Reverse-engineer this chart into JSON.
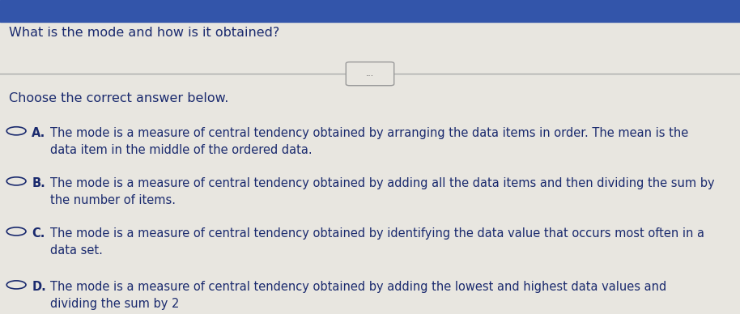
{
  "title": "What is the mode and how is it obtained?",
  "subtitle": "Choose the correct answer below.",
  "separator_text": "...",
  "options": [
    {
      "label": "A.",
      "text": "The mode is a measure of central tendency obtained by arranging the data items in order. The mean is the\ndata item in the middle of the ordered data."
    },
    {
      "label": "B.",
      "text": "The mode is a measure of central tendency obtained by adding all the data items and then dividing the sum by\nthe number of items."
    },
    {
      "label": "C.",
      "text": "The mode is a measure of central tendency obtained by identifying the data value that occurs most often in a\ndata set."
    },
    {
      "label": "D.",
      "text": "The mode is a measure of central tendency obtained by adding the lowest and highest data values and\ndividing the sum by 2"
    }
  ],
  "bg_color": "#e8e6e0",
  "top_bar_color": "#3355aa",
  "text_color": "#1a2a6e",
  "title_fontsize": 11.5,
  "subtitle_fontsize": 11.5,
  "option_fontsize": 10.5,
  "fig_width": 9.14,
  "fig_height": 3.88
}
